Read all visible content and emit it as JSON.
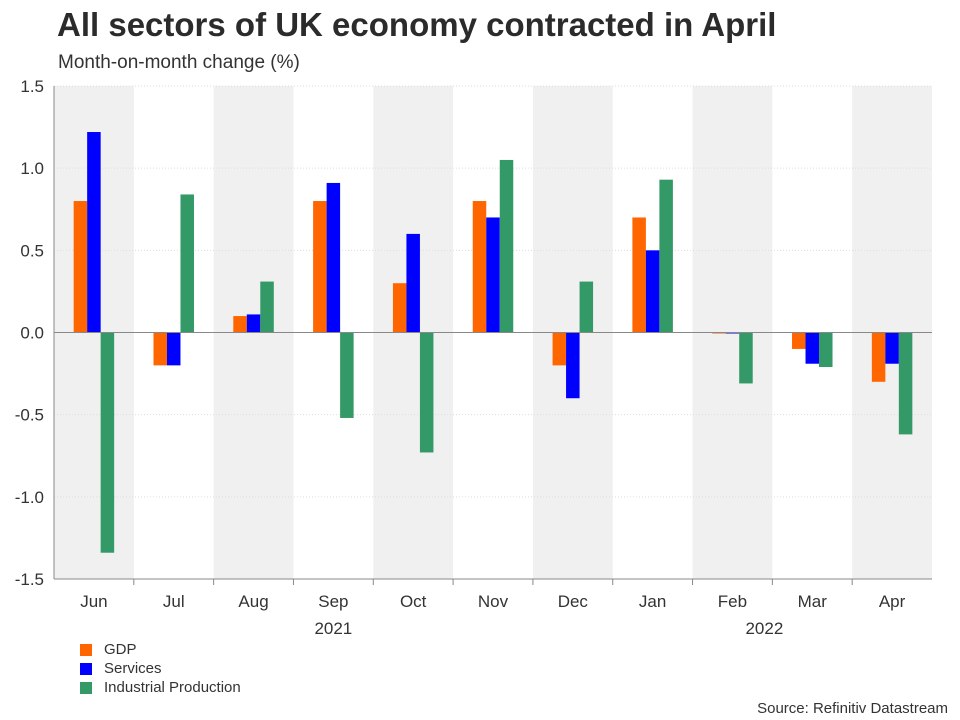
{
  "chart_data": {
    "type": "bar",
    "title": "All sectors of UK economy contracted in April",
    "subtitle": "Month-on-month change (%)",
    "categories": [
      "Jun",
      "Jul",
      "Aug",
      "Sep",
      "Oct",
      "Nov",
      "Dec",
      "Jan",
      "Feb",
      "Mar",
      "Apr"
    ],
    "year_labels": [
      {
        "label": "2021",
        "category_index": 3
      },
      {
        "label": "2022",
        "category_index": 8.4
      }
    ],
    "series": [
      {
        "name": "GDP",
        "color": "#ff6600",
        "values": [
          0.8,
          -0.2,
          0.1,
          0.8,
          0.3,
          0.8,
          -0.2,
          0.7,
          0.0,
          -0.1,
          -0.3
        ]
      },
      {
        "name": "Services",
        "color": "#0000ff",
        "values": [
          1.22,
          -0.2,
          0.11,
          0.91,
          0.6,
          0.7,
          -0.4,
          0.5,
          0.0,
          -0.19,
          -0.19
        ]
      },
      {
        "name": "Industrial Production",
        "color": "#339966",
        "values": [
          -1.34,
          0.84,
          0.31,
          -0.52,
          -0.73,
          1.05,
          0.31,
          0.93,
          -0.31,
          -0.21,
          -0.62
        ]
      }
    ],
    "ylim": [
      -1.5,
      1.5
    ],
    "yticks": [
      "1.5",
      "1.0",
      "0.5",
      "0.0",
      "-0.5",
      "-1.0",
      "-1.5"
    ],
    "ytick_values": [
      1.5,
      1.0,
      0.5,
      0.0,
      -0.5,
      -1.0,
      -1.5
    ],
    "xlabel": "",
    "ylabel": "",
    "legend_position": "bottom-left",
    "grid": true,
    "source": "Source: Refinitiv Datastream"
  },
  "colors": {
    "band": "#f0f0f0",
    "axis": "#888888",
    "grid": "#dddddd"
  }
}
